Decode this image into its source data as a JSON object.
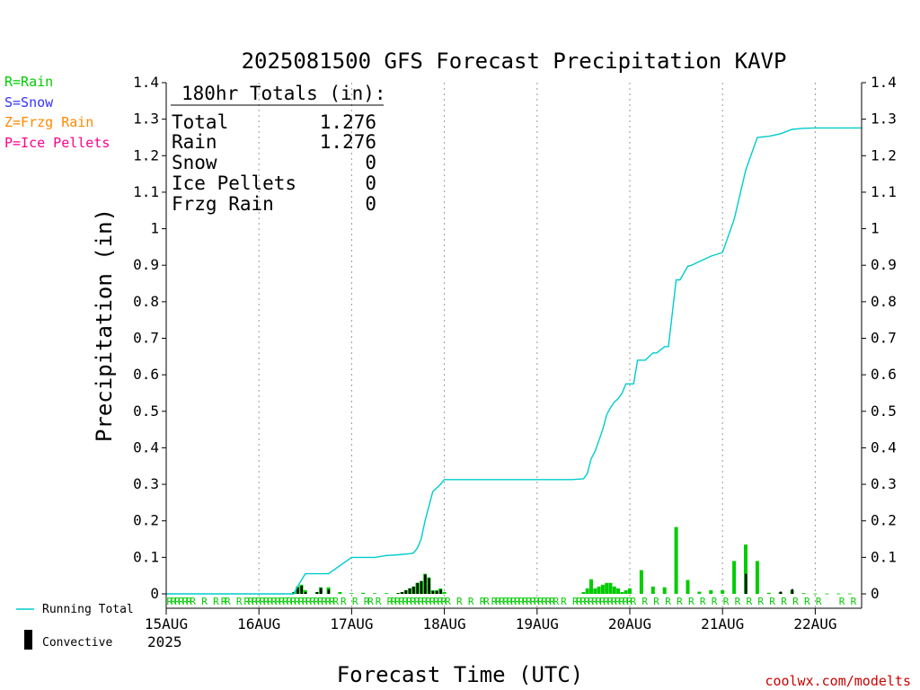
{
  "chart_data": {
    "type": "bar",
    "title": "2025081500 GFS Forecast Precipitation KAVP",
    "xlabel": "Forecast Time (UTC)",
    "ylabel": "Precipitation (in)",
    "ylim": [
      0,
      1.4
    ],
    "y_ticks": [
      "0",
      "0.1",
      "0.2",
      "0.3",
      "0.4",
      "0.5",
      "0.6",
      "0.7",
      "0.8",
      "0.9",
      "1",
      "1.1",
      "1.2",
      "1.3",
      "1.4"
    ],
    "x_tick_labels": [
      "15AUG",
      "16AUG",
      "17AUG",
      "18AUG",
      "19AUG",
      "20AUG",
      "21AUG",
      "22AUG"
    ],
    "x_year_label": "2025",
    "grid": "vertical dotted at day boundaries",
    "legend_left": [
      {
        "text": "R=Rain",
        "color": "#00cc00"
      },
      {
        "text": "S=Snow",
        "color": "#3333ff"
      },
      {
        "text": "Z=Frzg Rain",
        "color": "#ff8800"
      },
      {
        "text": "P=Ice Pellets",
        "color": "#ff0088"
      }
    ],
    "legend_bottom": {
      "running_total": "Running Total",
      "convective": "Convective"
    },
    "totals": {
      "header": "180hr Totals (in):",
      "rows": [
        {
          "label": "Total",
          "value": "1.276"
        },
        {
          "label": "Rain",
          "value": "1.276"
        },
        {
          "label": "Snow",
          "value": "0"
        },
        {
          "label": "Ice Pellets",
          "value": "0"
        },
        {
          "label": "Frzg Rain",
          "value": "0"
        }
      ]
    },
    "colors": {
      "rain": "#00cc00",
      "convective": "#000000",
      "running_total": "#00cccc",
      "grid": "#999999",
      "credit": "#cc0000"
    },
    "running_total_series": {
      "name": "Running Total",
      "hours": [
        0,
        33,
        34,
        36,
        39,
        42,
        48,
        54,
        57,
        60,
        63,
        64,
        65,
        66,
        67,
        69,
        70,
        71,
        72,
        105,
        108,
        109,
        110,
        111,
        112,
        113,
        114,
        115,
        116,
        117,
        118,
        119,
        120,
        121,
        122,
        123,
        124,
        126,
        127,
        129,
        130,
        132,
        133,
        135,
        136,
        138,
        141,
        144,
        147,
        150,
        153,
        156,
        159,
        162,
        165,
        168,
        171,
        174,
        177,
        180
      ],
      "values": [
        0,
        0,
        0.02,
        0.055,
        0.055,
        0.055,
        0.1,
        0.1,
        0.105,
        0.107,
        0.11,
        0.112,
        0.125,
        0.15,
        0.2,
        0.28,
        0.29,
        0.3,
        0.313,
        0.313,
        0.315,
        0.33,
        0.37,
        0.39,
        0.42,
        0.45,
        0.49,
        0.51,
        0.525,
        0.535,
        0.55,
        0.575,
        0.575,
        0.575,
        0.64,
        0.64,
        0.64,
        0.66,
        0.66,
        0.677,
        0.677,
        0.86,
        0.86,
        0.897,
        0.9,
        0.91,
        0.925,
        0.935,
        1.025,
        1.16,
        1.25,
        1.253,
        1.26,
        1.272,
        1.275,
        1.276,
        1.276,
        1.276,
        1.276,
        1.276
      ]
    },
    "rain_bars": {
      "hours": [
        33,
        34,
        35,
        36,
        39,
        40,
        42,
        45,
        48,
        51,
        54,
        57,
        60,
        61,
        62,
        63,
        64,
        65,
        66,
        67,
        68,
        69,
        70,
        71,
        72,
        108,
        109,
        110,
        111,
        112,
        113,
        114,
        115,
        116,
        117,
        118,
        119,
        120,
        123,
        126,
        129,
        132,
        135,
        138,
        141,
        144,
        147,
        150,
        153,
        156,
        159,
        162,
        165,
        168,
        171,
        174,
        177
      ],
      "values": [
        0.005,
        0.02,
        0.025,
        0.01,
        0.005,
        0.018,
        0.018,
        0.005,
        0.002,
        0.003,
        0.002,
        0.002,
        0.002,
        0.005,
        0.01,
        0.015,
        0.02,
        0.03,
        0.035,
        0.055,
        0.045,
        0.01,
        0.01,
        0.015,
        0.005,
        0.005,
        0.015,
        0.04,
        0.015,
        0.02,
        0.025,
        0.03,
        0.03,
        0.02,
        0.015,
        0.005,
        0.01,
        0.015,
        0.065,
        0.02,
        0.018,
        0.183,
        0.038,
        0.006,
        0.01,
        0.01,
        0.09,
        0.135,
        0.09,
        0.003,
        0.005,
        0.01,
        0.002,
        0.001,
        0.001,
        0.001,
        0.001
      ]
    },
    "convective_bars": {
      "hours": [
        33,
        34,
        35,
        36,
        39,
        40,
        42,
        60,
        61,
        62,
        63,
        64,
        65,
        66,
        67,
        68,
        69,
        70,
        71,
        150,
        159,
        162
      ],
      "values": [
        0.005,
        0.018,
        0.022,
        0.005,
        0.005,
        0.016,
        0.012,
        0.002,
        0.005,
        0.01,
        0.015,
        0.02,
        0.03,
        0.035,
        0.053,
        0.043,
        0.008,
        0.008,
        0.012,
        0.055,
        0.006,
        0.013
      ]
    },
    "ptype_hours": [
      0,
      1,
      2,
      3,
      4,
      5,
      6,
      9,
      12,
      14,
      15,
      18,
      20,
      21,
      22,
      23,
      24,
      25,
      26,
      27,
      28,
      29,
      30,
      31,
      32,
      33,
      34,
      35,
      36,
      37,
      38,
      39,
      40,
      41,
      42,
      43,
      45,
      48,
      51,
      52,
      54,
      57,
      58,
      59,
      60,
      61,
      62,
      63,
      64,
      65,
      66,
      67,
      68,
      69,
      70,
      71,
      72,
      75,
      78,
      81,
      82,
      84,
      85,
      86,
      87,
      88,
      89,
      90,
      91,
      92,
      93,
      94,
      95,
      96,
      97,
      98,
      99,
      100,
      102,
      105,
      106,
      107,
      108,
      109,
      110,
      111,
      112,
      113,
      114,
      115,
      116,
      117,
      118,
      119,
      120,
      123,
      126,
      129,
      132,
      135,
      138,
      141,
      144,
      147,
      150,
      153,
      156,
      159,
      162,
      165,
      168,
      174,
      177
    ],
    "ptype_symbol": "R",
    "credit": "coolwx.com/modelts"
  }
}
